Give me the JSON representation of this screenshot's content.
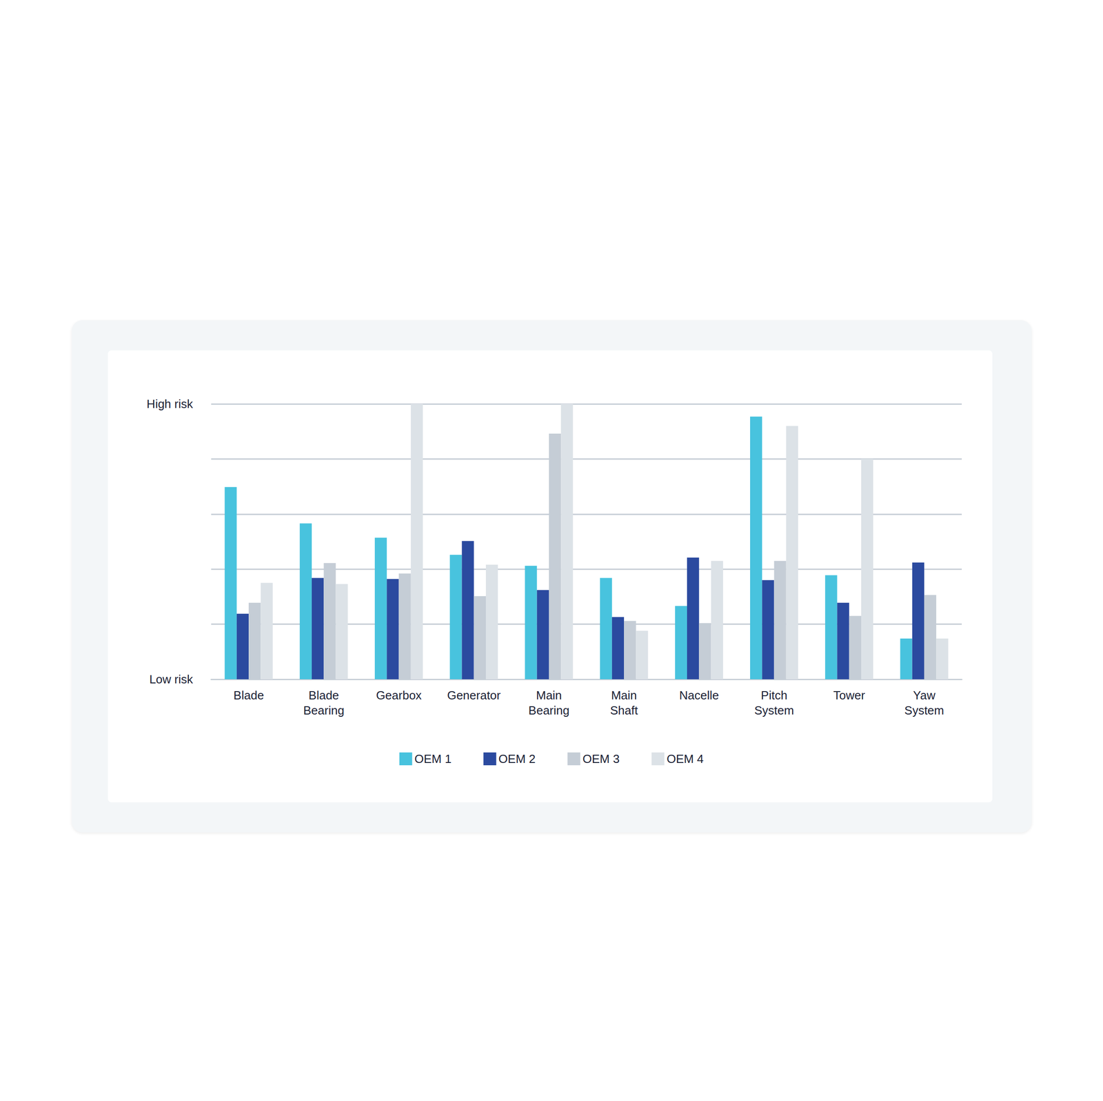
{
  "chart_data": {
    "type": "bar",
    "categories": [
      "Blade",
      "Blade Bearing",
      "Gearbox",
      "Generator",
      "Main Bearing",
      "Main Shaft",
      "Nacelle",
      "Pitch System",
      "Tower",
      "Yaw System"
    ],
    "series": [
      {
        "name": "OEM 1",
        "color": "#48c3de",
        "values": [
          3.49,
          2.83,
          2.57,
          2.26,
          2.06,
          1.84,
          1.33,
          4.77,
          1.89,
          0.74
        ]
      },
      {
        "name": "OEM 2",
        "color": "#2b4a9f",
        "values": [
          1.19,
          1.84,
          1.82,
          2.51,
          1.62,
          1.13,
          2.21,
          1.8,
          1.39,
          2.12
        ]
      },
      {
        "name": "OEM 3",
        "color": "#c5cdd6",
        "values": [
          1.39,
          2.11,
          1.92,
          1.51,
          4.46,
          1.06,
          1.02,
          2.15,
          1.15,
          1.53
        ]
      },
      {
        "name": "OEM 4",
        "color": "#dce2e7",
        "values": [
          1.75,
          1.73,
          5.0,
          2.08,
          5.0,
          0.88,
          2.15,
          4.6,
          4.0,
          0.74
        ]
      }
    ],
    "ylim": [
      0,
      5
    ],
    "yticks": [
      {
        "value": 0,
        "label": "Low risk"
      },
      {
        "value": 5,
        "label": "High risk"
      }
    ],
    "grid": true,
    "legend": "bottom"
  }
}
